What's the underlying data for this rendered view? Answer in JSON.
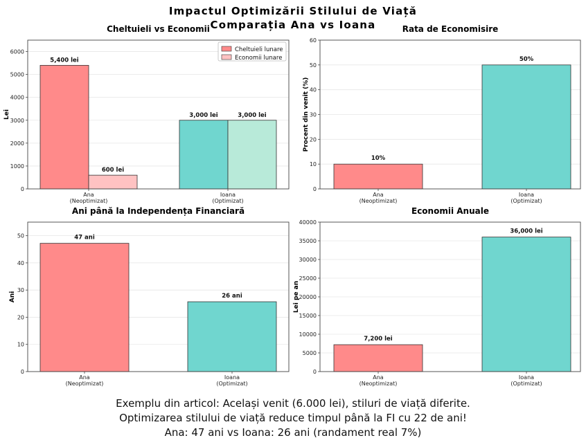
{
  "figure": {
    "title_line1": "Impactul Optimizării Stilului de Viață",
    "title_line2": "Comparația Ana vs Ioana",
    "footer_line1": "Exemplu din articol: Același venit (6.000 lei), stiluri de viață diferite.",
    "footer_line2": "Optimizarea stilului de viață reduce timpul până la FI cu 22 de ani!",
    "footer_line3": "Ana: 47 ani vs Ioana: 26 ani (randament real 7%)"
  },
  "colors": {
    "expense_ana": "#ff8a8a",
    "expense_ioana": "#70d6cf",
    "savings_ana": "#ffc2c2",
    "savings_ioana": "#b8ead9",
    "edge": "#333333",
    "grid": "#e6e6e6"
  },
  "chart_data": [
    {
      "type": "bar",
      "title": "Cheltuieli vs Economii",
      "xlabel": "",
      "ylabel": "Lei",
      "ylim": [
        0,
        6500
      ],
      "yticks": [
        0,
        1000,
        2000,
        3000,
        4000,
        5000,
        6000
      ],
      "categories": [
        "Ana\n(Neoptimizat)",
        "Ioana\n(Optimizat)"
      ],
      "series": [
        {
          "name": "Cheltuieli lunare",
          "values": [
            5400,
            3000
          ],
          "labels": [
            "5,400 lei",
            "3,000 lei"
          ]
        },
        {
          "name": "Economii lunare",
          "values": [
            600,
            3000
          ],
          "labels": [
            "600 lei",
            "3,000 lei"
          ]
        }
      ],
      "legend": "top-right"
    },
    {
      "type": "bar",
      "title": "Rata de Economisire",
      "xlabel": "",
      "ylabel": "Procent din venit (%)",
      "ylim": [
        0,
        60
      ],
      "yticks": [
        0,
        10,
        20,
        30,
        40,
        50,
        60
      ],
      "categories": [
        "Ana\n(Neoptimizat)",
        "Ioana\n(Optimizat)"
      ],
      "values": [
        10,
        50
      ],
      "labels": [
        "10%",
        "50%"
      ]
    },
    {
      "type": "bar",
      "title": "Ani până la Independența Financiară",
      "xlabel": "",
      "ylabel": "Ani",
      "ylim": [
        0,
        55
      ],
      "yticks": [
        0,
        10,
        20,
        30,
        40,
        50
      ],
      "categories": [
        "Ana\n(Neoptimizat)",
        "Ioana\n(Optimizat)"
      ],
      "values": [
        47.2,
        25.7
      ],
      "labels": [
        "47 ani",
        "26 ani"
      ]
    },
    {
      "type": "bar",
      "title": "Economii Anuale",
      "xlabel": "",
      "ylabel": "Lei pe an",
      "ylim": [
        0,
        40000
      ],
      "yticks": [
        0,
        5000,
        10000,
        15000,
        20000,
        25000,
        30000,
        35000,
        40000
      ],
      "categories": [
        "Ana\n(Neoptimizat)",
        "Ioana\n(Optimizat)"
      ],
      "values": [
        7200,
        36000
      ],
      "labels": [
        "7,200 lei",
        "36,000 lei"
      ]
    }
  ]
}
